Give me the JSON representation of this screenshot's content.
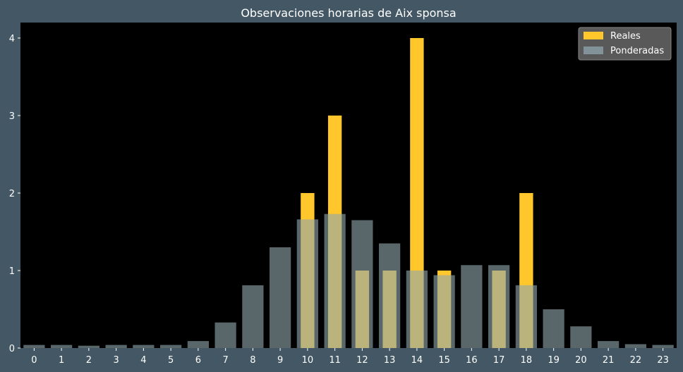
{
  "chart_data": {
    "type": "bar",
    "title": "Observaciones horarias de Aix sponsa",
    "xlabel": "",
    "ylabel": "",
    "categories": [
      "0",
      "1",
      "2",
      "3",
      "4",
      "5",
      "6",
      "7",
      "8",
      "9",
      "10",
      "11",
      "12",
      "13",
      "14",
      "15",
      "16",
      "17",
      "18",
      "19",
      "20",
      "21",
      "22",
      "23"
    ],
    "ylim": [
      0,
      4.2
    ],
    "yticks": [
      "0",
      "1",
      "2",
      "3",
      "4"
    ],
    "grid": false,
    "legend_position": "top-right",
    "series": [
      {
        "name": "Reales",
        "color": "#ffc72c",
        "values": [
          0,
          0,
          0,
          0,
          0,
          0,
          0,
          0,
          0,
          0,
          2,
          3,
          1,
          1,
          4,
          1,
          0,
          1,
          2,
          0,
          0,
          0,
          0,
          0
        ]
      },
      {
        "name": "Ponderadas",
        "color": "#8fa6ad",
        "values": [
          0.04,
          0.04,
          0.03,
          0.04,
          0.04,
          0.04,
          0.09,
          0.33,
          0.81,
          1.3,
          1.66,
          1.73,
          1.65,
          1.35,
          1.0,
          0.94,
          1.07,
          1.07,
          0.81,
          0.5,
          0.28,
          0.09,
          0.05,
          0.04
        ]
      }
    ]
  }
}
